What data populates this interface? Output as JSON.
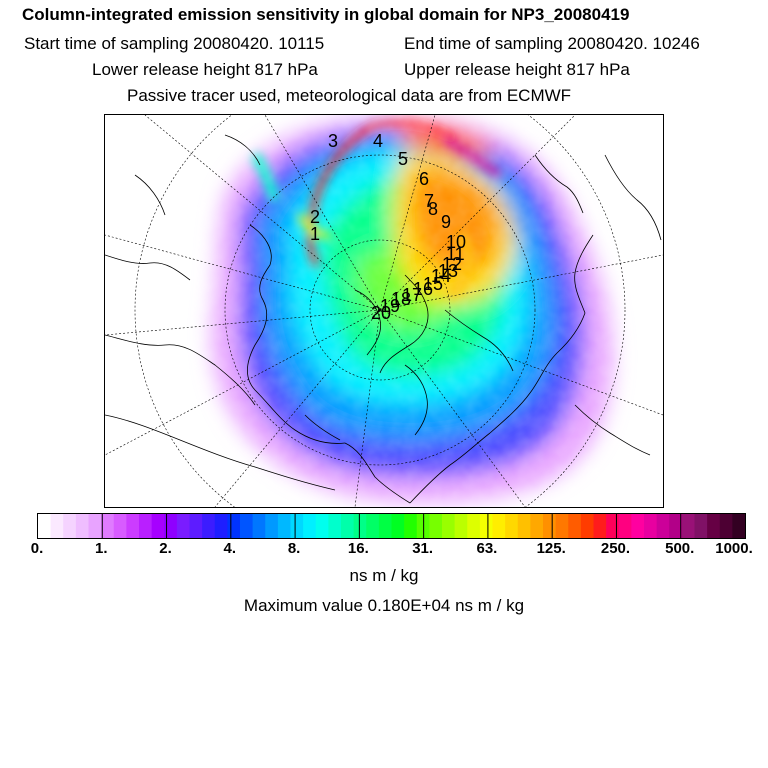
{
  "header": {
    "title": "Column-integrated emission sensitivity in global domain for NP3_20080419",
    "start_label": "Start time of sampling 20080420. 10115",
    "end_label": "End time of sampling 20080420. 10246",
    "lower_label": "Lower release height  817 hPa",
    "upper_label": "Upper release height  817 hPa",
    "tracer_note": "Passive tracer used, meteorological data are from ECMWF"
  },
  "map": {
    "projection": "polar stereographic",
    "trajectory_labels": [
      "3",
      "4",
      "5",
      "6",
      "7",
      "8",
      "9",
      "10",
      "11",
      "12",
      "13",
      "14",
      "15",
      "16",
      "17",
      "18",
      "19",
      "20",
      "2",
      "1"
    ]
  },
  "colorbar": {
    "tick_labels": [
      "0.",
      "1.",
      "2.",
      "4.",
      "8.",
      "16.",
      "31.",
      "63.",
      "125.",
      "250.",
      "500.",
      "1000."
    ],
    "colors": [
      "#ffffff",
      "#fbe9ff",
      "#f5d3ff",
      "#efbdff",
      "#e8a3ff",
      "#e07bff",
      "#d85cff",
      "#cc3cff",
      "#b91fff",
      "#a600ff",
      "#8f00ff",
      "#7a1cff",
      "#5d1cff",
      "#3c1cff",
      "#1e1eff",
      "#0033ff",
      "#0055ff",
      "#0077ff",
      "#0099ff",
      "#00b8ff",
      "#00d8ff",
      "#00f0ff",
      "#00ffee",
      "#00ffcc",
      "#00ffaa",
      "#00ff88",
      "#00ff66",
      "#00ff44",
      "#00ff22",
      "#22ff00",
      "#55ff00",
      "#77ff00",
      "#99ff00",
      "#bbff00",
      "#ddff00",
      "#f5ff00",
      "#ffee00",
      "#ffd800",
      "#ffc000",
      "#ffa800",
      "#ff9000",
      "#ff7800",
      "#ff5c00",
      "#ff3c00",
      "#ff1c1c",
      "#ff005a",
      "#ff0080",
      "#ff00a0",
      "#e800a0",
      "#cc0099",
      "#b20088",
      "#991177",
      "#801166",
      "#660044",
      "#4d0033",
      "#330022"
    ],
    "units": "ns m / kg"
  },
  "footer": {
    "max_label": "Maximum value  0.180E+04 ns m / kg"
  }
}
